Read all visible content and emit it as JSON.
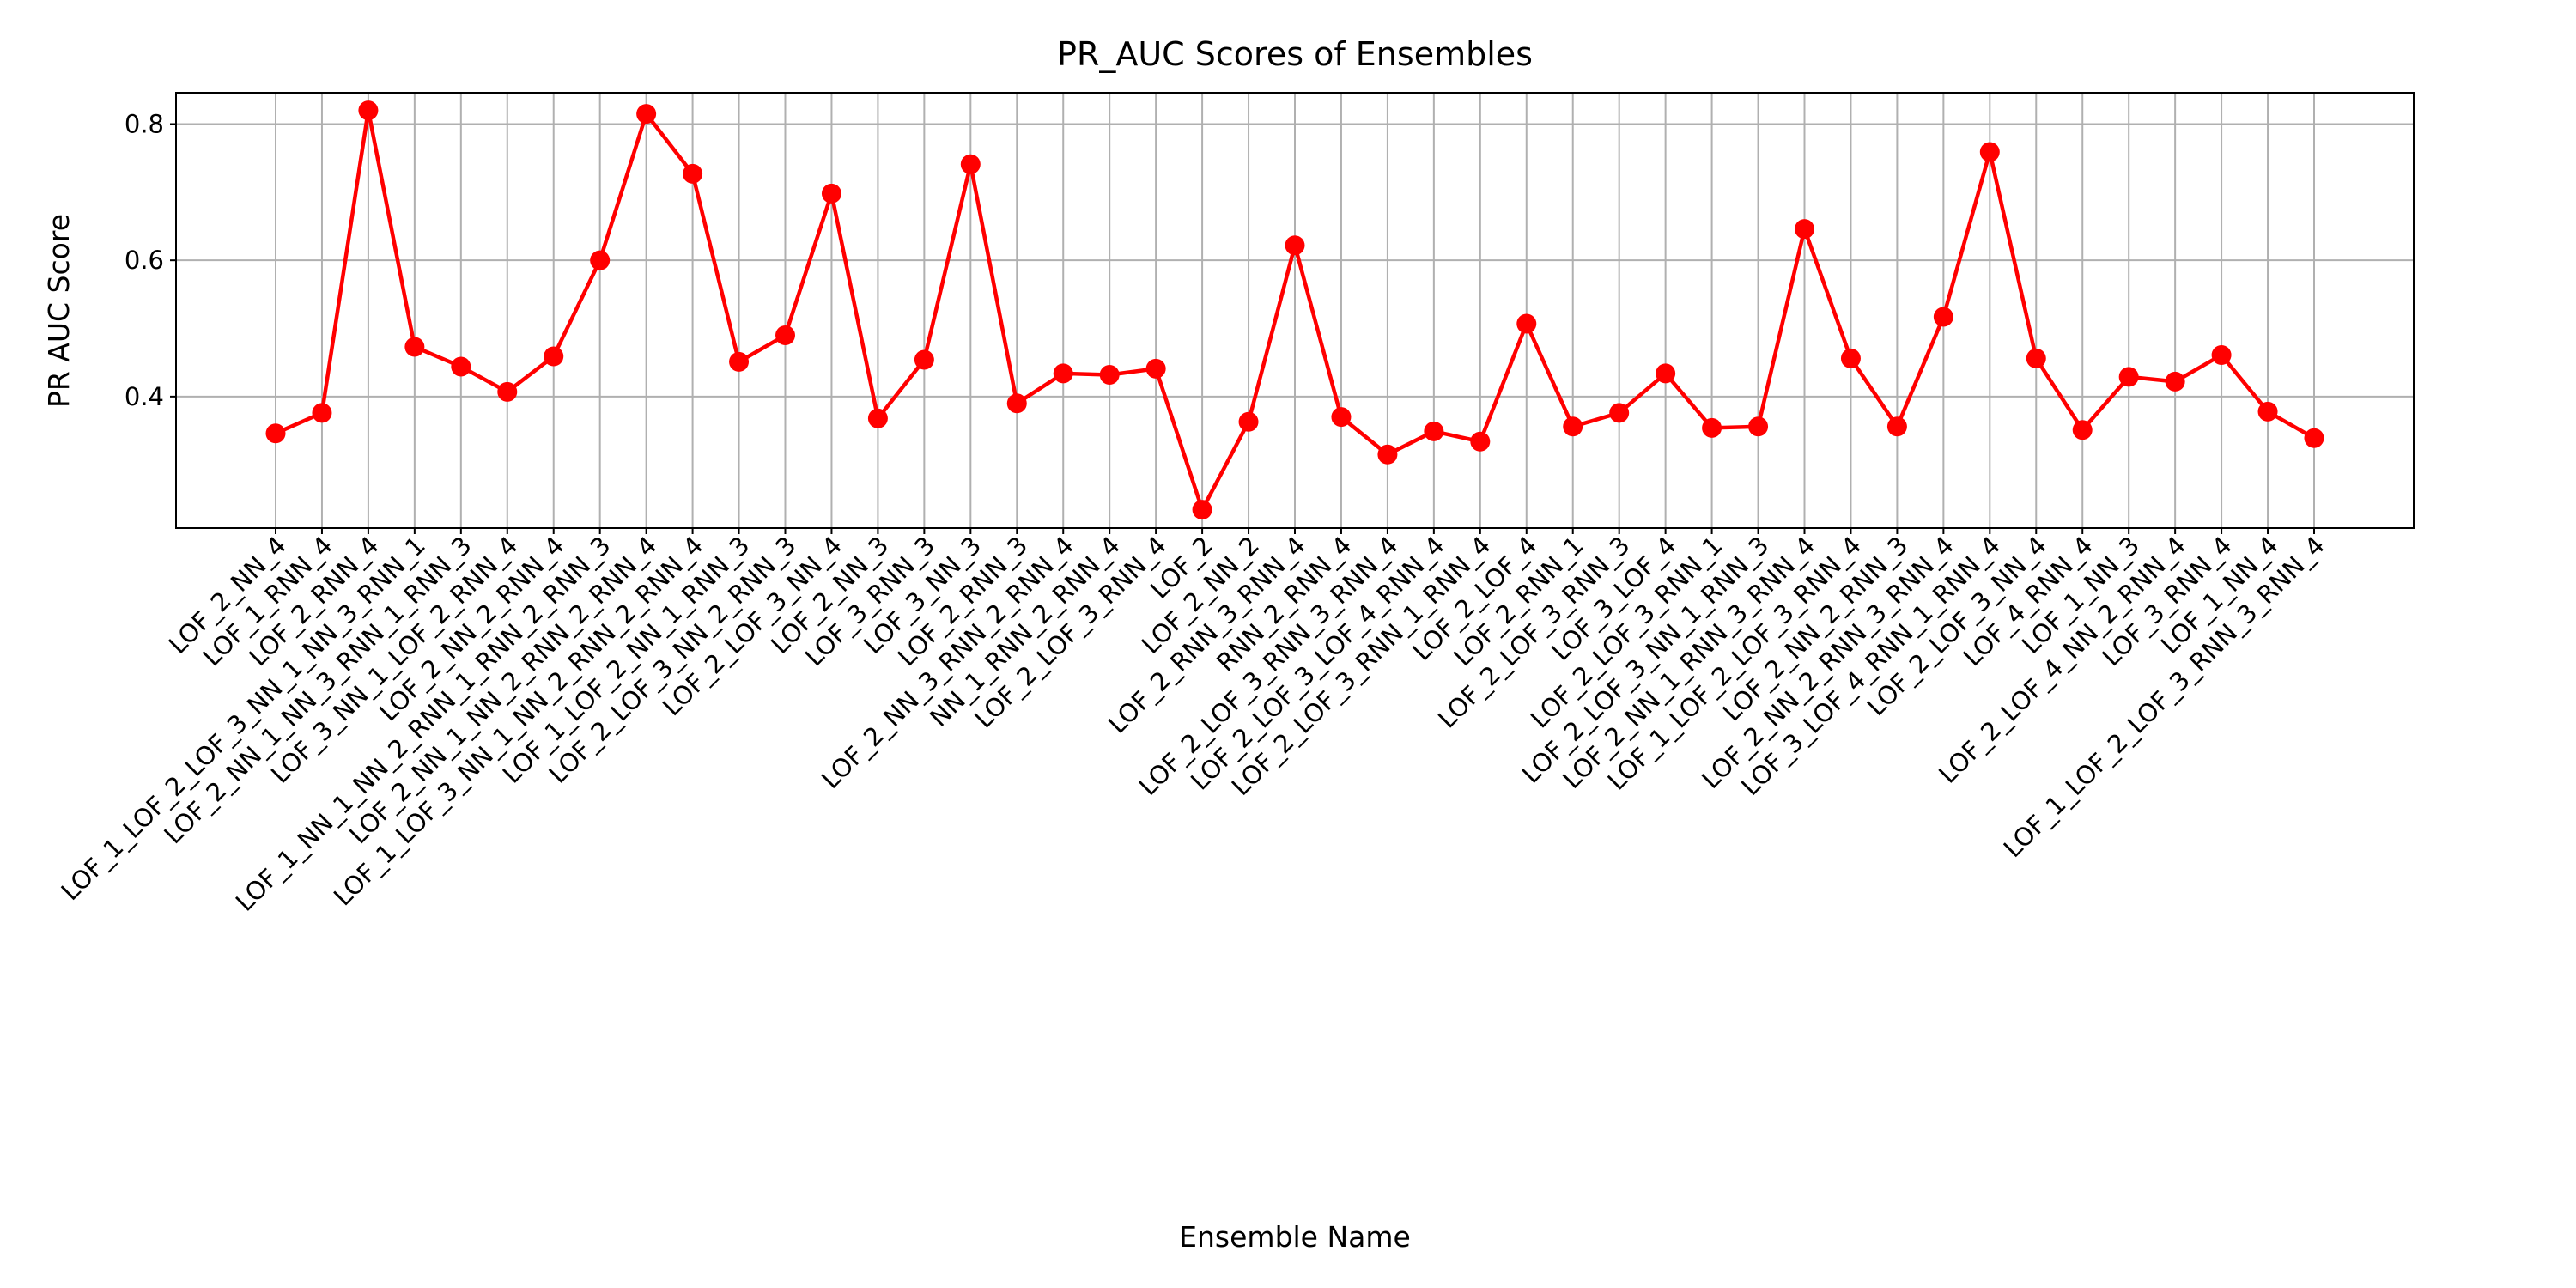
{
  "chart_data": {
    "type": "line",
    "title": "PR_AUC Scores of Ensembles",
    "xlabel": "Ensemble Name",
    "ylabel": "PR AUC Score",
    "categories": [
      "LOF_2_NN_4",
      "LOF_1_RNN_4",
      "LOF_2_RNN_4",
      "LOF_1_LOF_2_LOF_3_NN_1_NN_3_RNN_1",
      "LOF_2_NN_1_NN_3_RNN_1_RNN_3",
      "LOF_3_NN_1_LOF_2_RNN_4",
      "LOF_2_NN_2_RNN_4",
      "LOF_1_NN_1_NN_2_RNN_1_RNN_2_RNN_3",
      "LOF_2_NN_1_NN_2_RNN_2_RNN_4",
      "LOF_1_LOF_3_NN_1_NN_2_RNN_2_RNN_4",
      "LOF_1_LOF_2_NN_1_RNN_3",
      "LOF_2_LOF_3_NN_2_RNN_3",
      "LOF_2_LOF_3_NN_4",
      "LOF_2_NN_3",
      "LOF_3_RNN_3",
      "LOF_3_NN_3",
      "LOF_2_RNN_3",
      "LOF_2_NN_3_RNN_2_RNN_4",
      "NN_1_RNN_2_RNN_4",
      "LOF_2_LOF_3_RNN_4",
      "LOF_2",
      "LOF_2_NN_2",
      "LOF_2_RNN_3_RNN_4",
      "RNN_2_RNN_4",
      "LOF_2_LOF_3_RNN_3_RNN_4",
      "LOF_2_LOF_3_LOF_4_RNN_4",
      "LOF_2_LOF_3_RNN_1_RNN_4",
      "LOF_2_LOF_4",
      "LOF_2_RNN_1",
      "LOF_2_LOF_3_RNN_3",
      "LOF_3_LOF_4",
      "LOF_2_LOF_3_RNN_1",
      "LOF_2_LOF_3_NN_1_RNN_3",
      "LOF_2_NN_1_RNN_3_RNN_4",
      "LOF_1_LOF_2_LOF_3_RNN_4",
      "LOF_2_NN_2_RNN_3",
      "LOF_2_NN_2_RNN_3_RNN_4",
      "LOF_3_LOF_4_RNN_1_RNN_4",
      "LOF_2_LOF_3_NN_4",
      "LOF_4_RNN_4",
      "LOF_1_NN_3",
      "LOF_2_LOF_4_NN_2_RNN_4",
      "LOF_3_RNN_4",
      "LOF_1_NN_4",
      "LOF_1_LOF_2_LOF_3_RNN_3_RNN_4"
    ],
    "series": [
      {
        "name": "PR AUC",
        "color": "#ff0000",
        "values": [
          0.346,
          0.376,
          0.82,
          0.473,
          0.444,
          0.407,
          0.459,
          0.6,
          0.815,
          0.727,
          0.451,
          0.49,
          0.698,
          0.368,
          0.454,
          0.741,
          0.39,
          0.434,
          0.432,
          0.441,
          0.234,
          0.363,
          0.622,
          0.37,
          0.315,
          0.349,
          0.334,
          0.507,
          0.356,
          0.376,
          0.434,
          0.354,
          0.356,
          0.646,
          0.456,
          0.356,
          0.517,
          0.759,
          0.456,
          0.351,
          0.429,
          0.422,
          0.461,
          0.378,
          0.339
        ]
      }
    ],
    "ylim": [
      0.207,
      0.846
    ],
    "yticks": [
      {
        "value": 0.4,
        "label": "0.4"
      },
      {
        "value": 0.6,
        "label": "0.6"
      },
      {
        "value": 0.8,
        "label": "0.8"
      }
    ],
    "grid": true
  }
}
